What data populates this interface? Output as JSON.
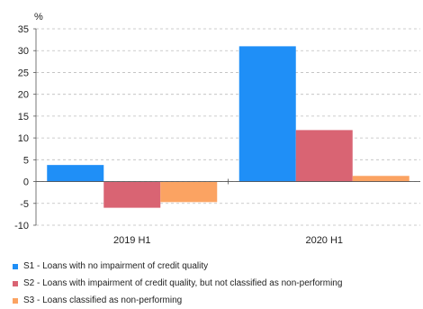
{
  "chart_data": {
    "type": "bar",
    "unit_label": "%",
    "categories": [
      "2019 H1",
      "2020 H1"
    ],
    "series": [
      {
        "name": "S1 - Loans with no impairment of credit quality",
        "color": "#1f8ff7",
        "values": [
          3.8,
          31.0
        ]
      },
      {
        "name": "S2 - Loans with impairment of credit quality, but not classified as non-performing",
        "color": "#d96473",
        "values": [
          -6.0,
          11.8
        ]
      },
      {
        "name": "S3 - Loans classified as non-performing",
        "color": "#fba362",
        "values": [
          -4.7,
          1.3
        ]
      }
    ],
    "ylim": [
      -10,
      35
    ],
    "yticks": [
      -10,
      -5,
      0,
      5,
      10,
      15,
      20,
      25,
      30,
      35
    ],
    "grid": true,
    "legend_position": "bottom"
  }
}
